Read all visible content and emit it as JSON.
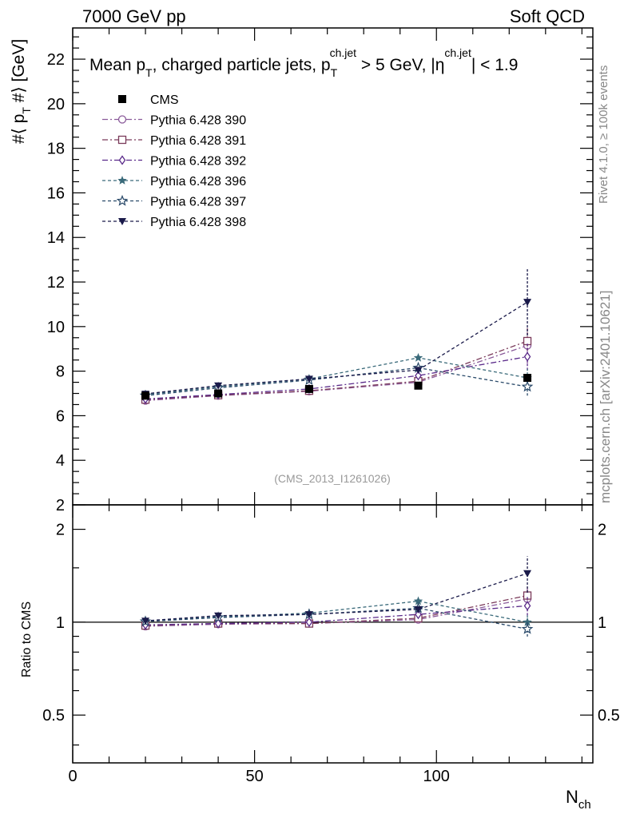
{
  "header": {
    "left": "7000 GeV pp",
    "right": "Soft QCD"
  },
  "side_labels": {
    "rivet": "Rivet 4.1.0, ≥ 100k events",
    "mcplots": "mcplots.cern.ch [arXiv:2401.10621]"
  },
  "chart_data": {
    "type": "line",
    "title": "Mean p_T, charged particle jets, p_T^{ch.jet} > 5 GeV, |η^{ch.jet}| < 1.9",
    "title_parts": {
      "prefix": "Mean p",
      "sub1": "T",
      "middle": ", charged particle jets, p",
      "sub2": "T",
      "sup2": "ch.jet",
      "cut": " > 5 GeV,  |η",
      "sup3": "ch.jet",
      "end": "| < 1.9"
    },
    "ylabel": "#⟨ p_T #⟩ [GeV]",
    "ylabel_parts": {
      "a": "#⟨ p",
      "sub": "T",
      "b": " #⟩ [GeV]"
    },
    "ratio_ylabel": "Ratio to CMS",
    "xlabel": "N_ch",
    "xlabel_parts": {
      "main": "N",
      "sub": "ch"
    },
    "analysis_id": "(CMS_2013_I1261026)",
    "xlim": [
      0,
      143
    ],
    "ylim": [
      2,
      23.4
    ],
    "ratio_ylim": [
      0.35,
      2.4
    ],
    "x_ticks": [
      0,
      50,
      100
    ],
    "y_ticks": [
      2,
      4,
      6,
      8,
      10,
      12,
      14,
      16,
      18,
      20,
      22
    ],
    "ratio_ticks": [
      0.5,
      1,
      2
    ],
    "x": [
      20,
      40,
      65,
      95,
      125
    ],
    "reference": {
      "name": "CMS",
      "color": "#000000",
      "marker": "filled-square",
      "x": [
        20,
        40,
        65,
        95,
        125
      ],
      "values": [
        6.9,
        7.0,
        7.2,
        7.35,
        7.7
      ]
    },
    "series": [
      {
        "name": "Pythia 6.428 390",
        "color": "#8a5a9a",
        "marker": "open-circle",
        "dash": "7 3 2 3",
        "values": [
          6.68,
          6.9,
          7.1,
          7.5,
          9.15
        ],
        "err_last": 0.8,
        "ratio": [
          0.97,
          0.985,
          0.99,
          1.02,
          1.19
        ]
      },
      {
        "name": "Pythia 6.428 391",
        "color": "#7a3a5a",
        "marker": "open-square",
        "dash": "7 3 2 3",
        "values": [
          6.72,
          6.92,
          7.12,
          7.55,
          9.35
        ],
        "err_last": 0.6,
        "ratio": [
          0.975,
          0.99,
          0.99,
          1.03,
          1.22
        ]
      },
      {
        "name": "Pythia 6.428 392",
        "color": "#5a2a8a",
        "marker": "open-diamond",
        "dash": "7 3 2 3",
        "values": [
          6.75,
          6.95,
          7.2,
          7.8,
          8.65
        ],
        "err_last": 0.6,
        "ratio": [
          0.98,
          0.99,
          1.0,
          1.06,
          1.13
        ]
      },
      {
        "name": "Pythia 6.428 396",
        "color": "#3a6a7a",
        "marker": "filled-star",
        "dash": "4 3",
        "values": [
          6.95,
          7.3,
          7.65,
          8.6,
          7.7
        ],
        "err_last": 0.4,
        "ratio": [
          1.01,
          1.04,
          1.07,
          1.17,
          1.0
        ]
      },
      {
        "name": "Pythia 6.428 397",
        "color": "#2a4a6a",
        "marker": "open-star",
        "dash": "4 3",
        "values": [
          6.9,
          7.25,
          7.6,
          8.15,
          7.3
        ],
        "err_last": 0.4,
        "ratio": [
          1.005,
          1.035,
          1.06,
          1.11,
          0.95
        ]
      },
      {
        "name": "Pythia 6.428 398",
        "color": "#1a1a4a",
        "marker": "filled-triangle-down",
        "dash": "4 3",
        "values": [
          6.98,
          7.35,
          7.65,
          8.05,
          11.1
        ],
        "err_last": 1.5,
        "ratio": [
          1.01,
          1.05,
          1.06,
          1.1,
          1.44
        ]
      }
    ]
  }
}
